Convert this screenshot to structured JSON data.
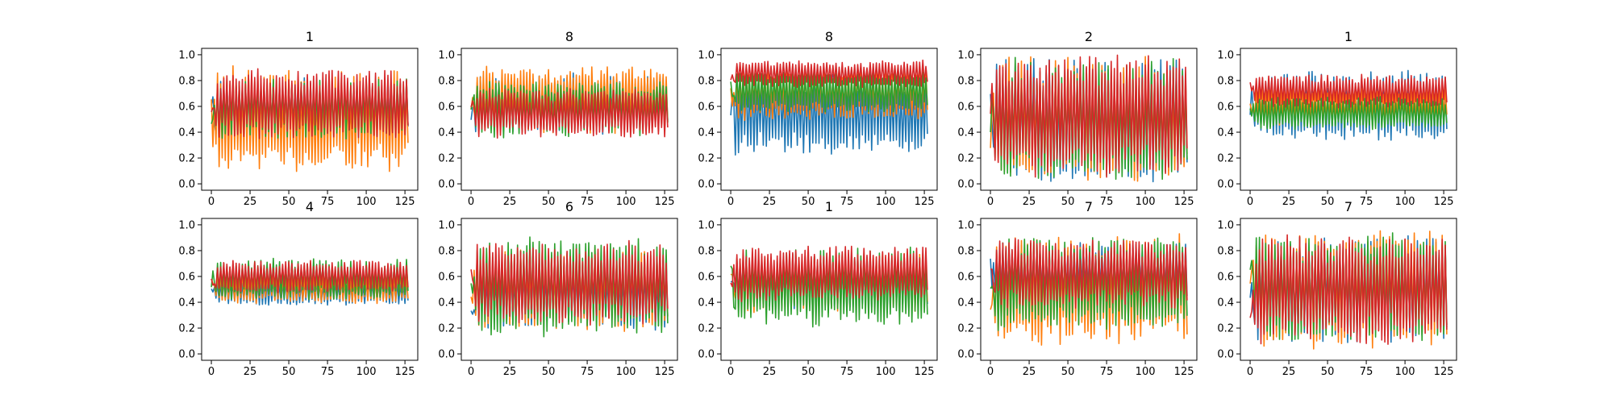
{
  "chart_data": {
    "type": "line",
    "series_colors": [
      "#1f77b4",
      "#ff7f0e",
      "#2ca02c",
      "#d62728"
    ],
    "xlim": [
      0,
      127
    ],
    "ylim": [
      0.0,
      1.0
    ],
    "xticks": [
      "0",
      "25",
      "50",
      "75",
      "100",
      "125"
    ],
    "yticks": [
      "0.0",
      "0.2",
      "0.4",
      "0.6",
      "0.8",
      "1.0"
    ],
    "grid": false,
    "points_per_series": 128,
    "note_series_values": "each panel shows 4 rapidly oscillating series over x = 0..127; values below are the approximate per-series envelope (center and half-amplitude of oscillation) read from the plot",
    "panels": [
      {
        "title": "1",
        "series": [
          {
            "center": 0.58,
            "amplitude": 0.22
          },
          {
            "center": 0.5,
            "amplitude": 0.38
          },
          {
            "center": 0.58,
            "amplitude": 0.22
          },
          {
            "center": 0.62,
            "amplitude": 0.25
          }
        ]
      },
      {
        "title": "8",
        "series": [
          {
            "center": 0.62,
            "amplitude": 0.22
          },
          {
            "center": 0.65,
            "amplitude": 0.25
          },
          {
            "center": 0.58,
            "amplitude": 0.2
          },
          {
            "center": 0.55,
            "amplitude": 0.18
          }
        ]
      },
      {
        "title": "8",
        "series": [
          {
            "center": 0.55,
            "amplitude": 0.3
          },
          {
            "center": 0.7,
            "amplitude": 0.2
          },
          {
            "center": 0.72,
            "amplitude": 0.15
          },
          {
            "center": 0.85,
            "amplitude": 0.1
          }
        ]
      },
      {
        "title": "2",
        "series": [
          {
            "center": 0.5,
            "amplitude": 0.45
          },
          {
            "center": 0.5,
            "amplitude": 0.45
          },
          {
            "center": 0.5,
            "amplitude": 0.45
          },
          {
            "center": 0.52,
            "amplitude": 0.45
          }
        ]
      },
      {
        "title": "1",
        "series": [
          {
            "center": 0.6,
            "amplitude": 0.25
          },
          {
            "center": 0.62,
            "amplitude": 0.15
          },
          {
            "center": 0.55,
            "amplitude": 0.12
          },
          {
            "center": 0.72,
            "amplitude": 0.12
          }
        ]
      },
      {
        "title": "4",
        "series": [
          {
            "center": 0.48,
            "amplitude": 0.1
          },
          {
            "center": 0.52,
            "amplitude": 0.12
          },
          {
            "center": 0.58,
            "amplitude": 0.15
          },
          {
            "center": 0.6,
            "amplitude": 0.12
          }
        ]
      },
      {
        "title": "6",
        "series": [
          {
            "center": 0.45,
            "amplitude": 0.25
          },
          {
            "center": 0.5,
            "amplitude": 0.3
          },
          {
            "center": 0.52,
            "amplitude": 0.35
          },
          {
            "center": 0.55,
            "amplitude": 0.3
          }
        ]
      },
      {
        "title": "1",
        "series": [
          {
            "center": 0.55,
            "amplitude": 0.2
          },
          {
            "center": 0.55,
            "amplitude": 0.22
          },
          {
            "center": 0.52,
            "amplitude": 0.28
          },
          {
            "center": 0.62,
            "amplitude": 0.2
          }
        ]
      },
      {
        "title": "7",
        "series": [
          {
            "center": 0.62,
            "amplitude": 0.22
          },
          {
            "center": 0.5,
            "amplitude": 0.4
          },
          {
            "center": 0.55,
            "amplitude": 0.35
          },
          {
            "center": 0.62,
            "amplitude": 0.25
          }
        ]
      },
      {
        "title": "7",
        "series": [
          {
            "center": 0.5,
            "amplitude": 0.4
          },
          {
            "center": 0.5,
            "amplitude": 0.42
          },
          {
            "center": 0.5,
            "amplitude": 0.4
          },
          {
            "center": 0.5,
            "amplitude": 0.4
          }
        ]
      }
    ]
  }
}
